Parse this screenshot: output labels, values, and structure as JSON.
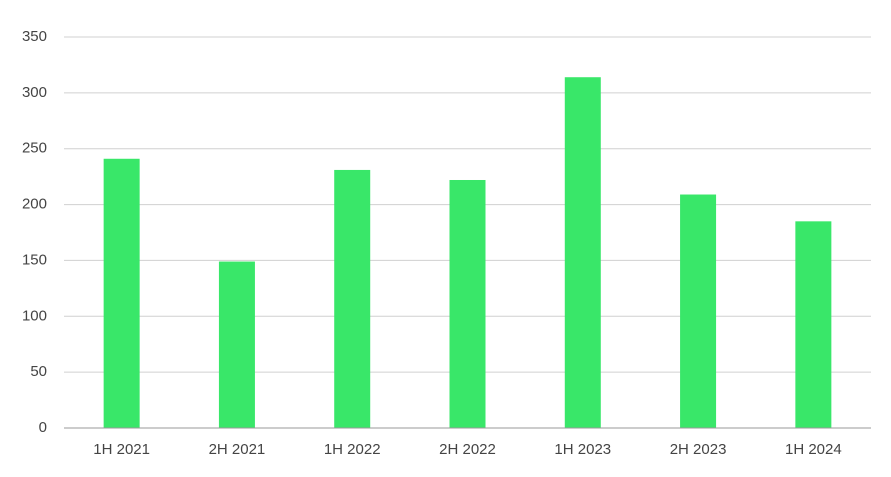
{
  "chart_data": {
    "type": "bar",
    "categories": [
      "1H 2021",
      "2H 2021",
      "1H 2022",
      "2H 2022",
      "1H 2023",
      "2H 2023",
      "1H 2024"
    ],
    "values": [
      241,
      149,
      231,
      222,
      314,
      209,
      185
    ],
    "color": "#39e769",
    "ylim": [
      0,
      350
    ],
    "yticks": [
      0,
      50,
      100,
      150,
      200,
      250,
      300,
      350
    ],
    "grid": true
  }
}
